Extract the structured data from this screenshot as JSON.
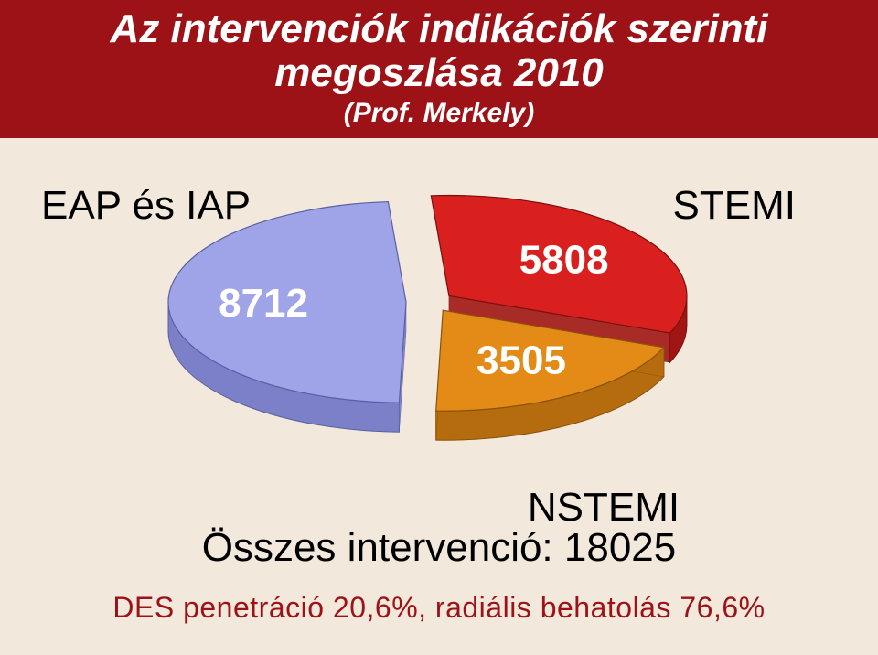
{
  "page": {
    "background_color": "#f2e8dc"
  },
  "header": {
    "band_color": "#9d1216",
    "text_color": "#ffffff",
    "title_line1": "Az intervenciók indikációk szerinti",
    "title_line2": "megoszlása 2010",
    "subtitle": "(Prof. Merkely)",
    "title_fontsize": 44,
    "subtitle_fontsize": 30
  },
  "chart": {
    "type": "pie",
    "exploded": true,
    "depth_3d": 32,
    "slices": [
      {
        "name": "EAP és IAP",
        "value": 8712,
        "fill": "#9fa3e7",
        "side_fill": "#7c80c9",
        "outline": "#5c5fa0",
        "value_color": "#ffffff",
        "label_pos": "outside-left"
      },
      {
        "name": "STEMI",
        "value": 5808,
        "fill": "#d9201e",
        "side_fill": "#a11614",
        "outline": "#7a100e",
        "value_color": "#ffffff",
        "label_pos": "outside-right"
      },
      {
        "name": "NSTEMI",
        "value": 3505,
        "fill": "#e38b16",
        "side_fill": "#b56c0e",
        "outline": "#8a520a",
        "value_color": "#ffffff",
        "label_pos": "outside-bottom"
      }
    ],
    "value_fontsize": 44,
    "category_label_fontsize": 44,
    "category_label_color": "#000000"
  },
  "summary": {
    "nstemi_label": "NSTEMI",
    "total_text_prefix": "Összes intervenció: ",
    "total_value": "18025",
    "footnote": "DES penetráció 20,6%, radiális behatolás 76,6%",
    "text_color": "#000000",
    "footnote_color": "#9d1216"
  }
}
